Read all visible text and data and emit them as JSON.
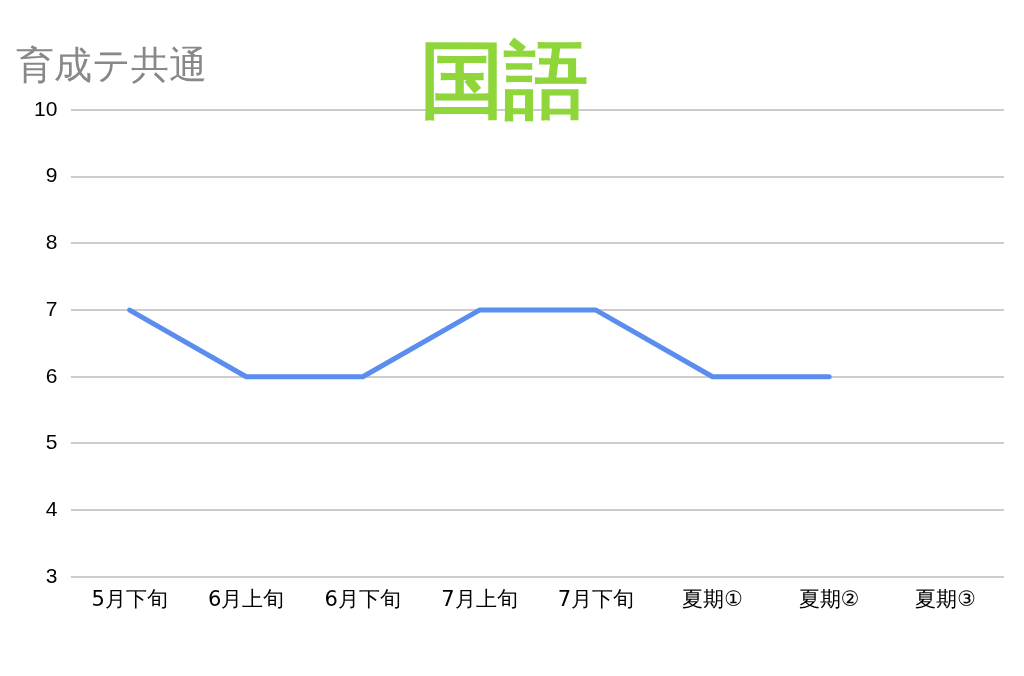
{
  "chart_data": {
    "type": "line",
    "title": "国語",
    "subtitle": "育成テ共通",
    "categories": [
      "5月下旬",
      "6月上旬",
      "6月下旬",
      "7月上旬",
      "7月下旬",
      "夏期①",
      "夏期②",
      "夏期③"
    ],
    "series": [
      {
        "color": "#5b8def",
        "values": [
          7,
          6,
          6,
          7,
          7,
          6,
          6,
          null
        ]
      }
    ],
    "ylim": [
      3,
      10
    ],
    "yticks": [
      3,
      4,
      5,
      6,
      7,
      8,
      9,
      10
    ],
    "grid": "y",
    "legend": false,
    "marker": "none",
    "line_style": "solid"
  }
}
